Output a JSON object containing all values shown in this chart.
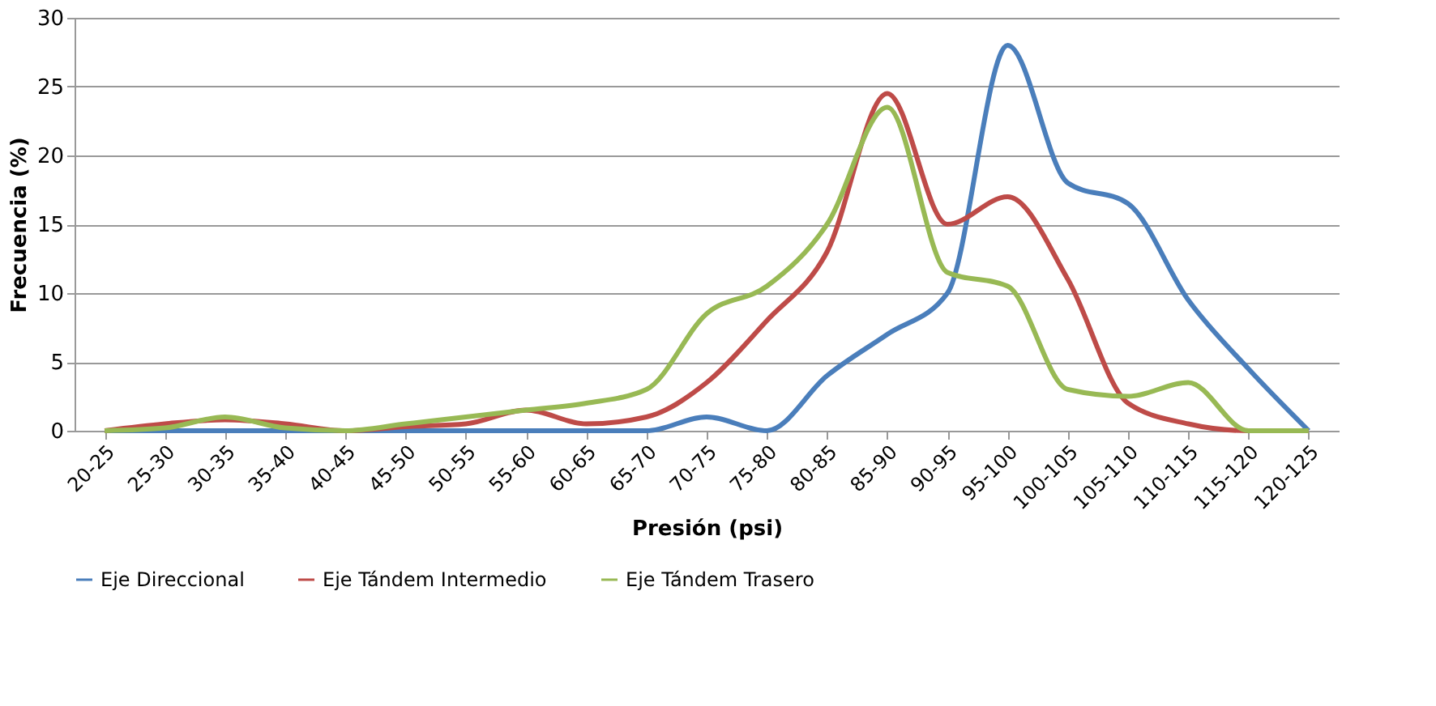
{
  "chart_data": {
    "type": "line",
    "xlabel": "Presión (psi)",
    "ylabel": "Frecuencia (%)",
    "categories": [
      "20-25",
      "25-30",
      "30-35",
      "35-40",
      "40-45",
      "45-50",
      "50-55",
      "55-60",
      "60-65",
      "65-70",
      "70-75",
      "75-80",
      "80-85",
      "85-90",
      "90-95",
      "95-100",
      "100-105",
      "105-110",
      "110-115",
      "115-120",
      "120-125"
    ],
    "series": [
      {
        "name": "Eje Direccional",
        "color": "#4a7ebb",
        "values": [
          0,
          0,
          0,
          0,
          0,
          0,
          0,
          0,
          0,
          0,
          1,
          0,
          4,
          7,
          10,
          28,
          18,
          16.5,
          9.5,
          4.5,
          0
        ]
      },
      {
        "name": "Eje Tándem Intermedio",
        "color": "#be4b48",
        "values": [
          0,
          0.5,
          0.8,
          0.5,
          0,
          0.3,
          0.5,
          1.5,
          0.5,
          1,
          3.5,
          8,
          13,
          24.5,
          15,
          17,
          11,
          2,
          0.5,
          0,
          0
        ]
      },
      {
        "name": "Eje Tándem Trasero",
        "color": "#98b954",
        "values": [
          0,
          0.2,
          1,
          0.2,
          0,
          0.5,
          1,
          1.5,
          2,
          3,
          8.5,
          10.5,
          15,
          23.5,
          11.5,
          10.5,
          3,
          2.5,
          3.5,
          0,
          0
        ]
      }
    ],
    "ylim": [
      0,
      30
    ],
    "yticks": [
      0,
      5,
      10,
      15,
      20,
      25,
      30
    ],
    "grid": "y",
    "legend": "bottom",
    "marker": "none",
    "line_style": "solid"
  }
}
